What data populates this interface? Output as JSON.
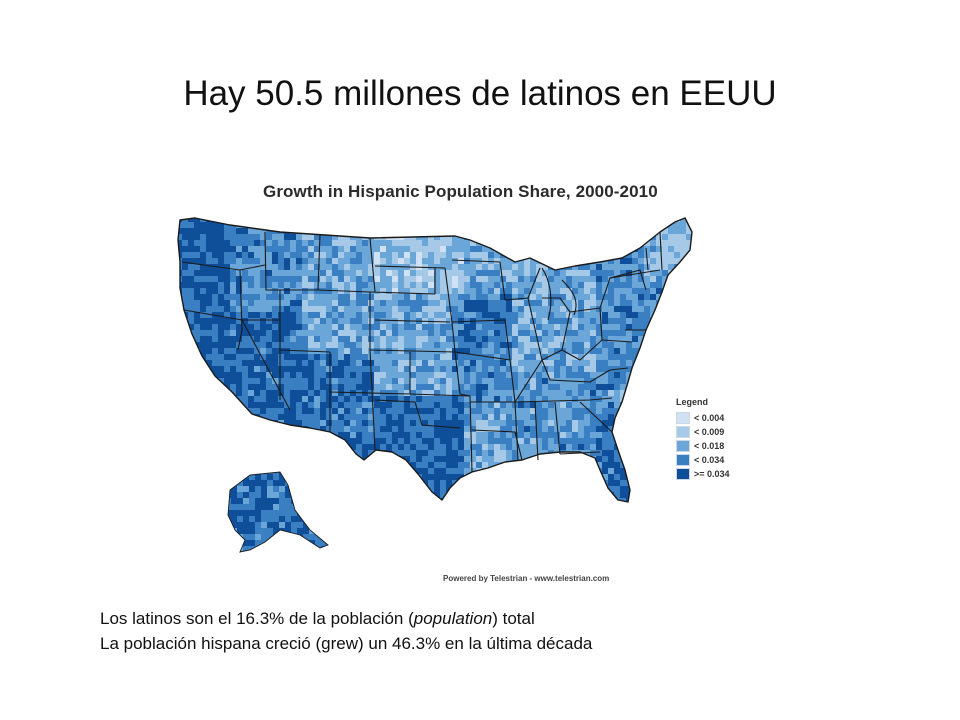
{
  "slide": {
    "title": "Hay 50.5 millones de latinos en EEUU",
    "caption_line1": {
      "before": "Los latinos son el 16.3% de la población (",
      "italic": "population",
      "after": ") total"
    },
    "caption_line2": "La población hispana creció (grew) un 46.3% en la última década"
  },
  "map": {
    "title": "Growth in Hispanic Population Share, 2000-2010",
    "legend_title": "Legend",
    "legend": [
      {
        "label": "< 0.004",
        "color": "#cfe1f2"
      },
      {
        "label": "< 0.009",
        "color": "#a7c9e8"
      },
      {
        "label": "< 0.018",
        "color": "#6aa6d8"
      },
      {
        "label": "< 0.034",
        "color": "#3a7fc1"
      },
      {
        "label": ">= 0.034",
        "color": "#0f4f9a"
      }
    ],
    "credit": "Powered by Telestrian - www.telestrian.com",
    "border_color": "#1a1a1a"
  }
}
